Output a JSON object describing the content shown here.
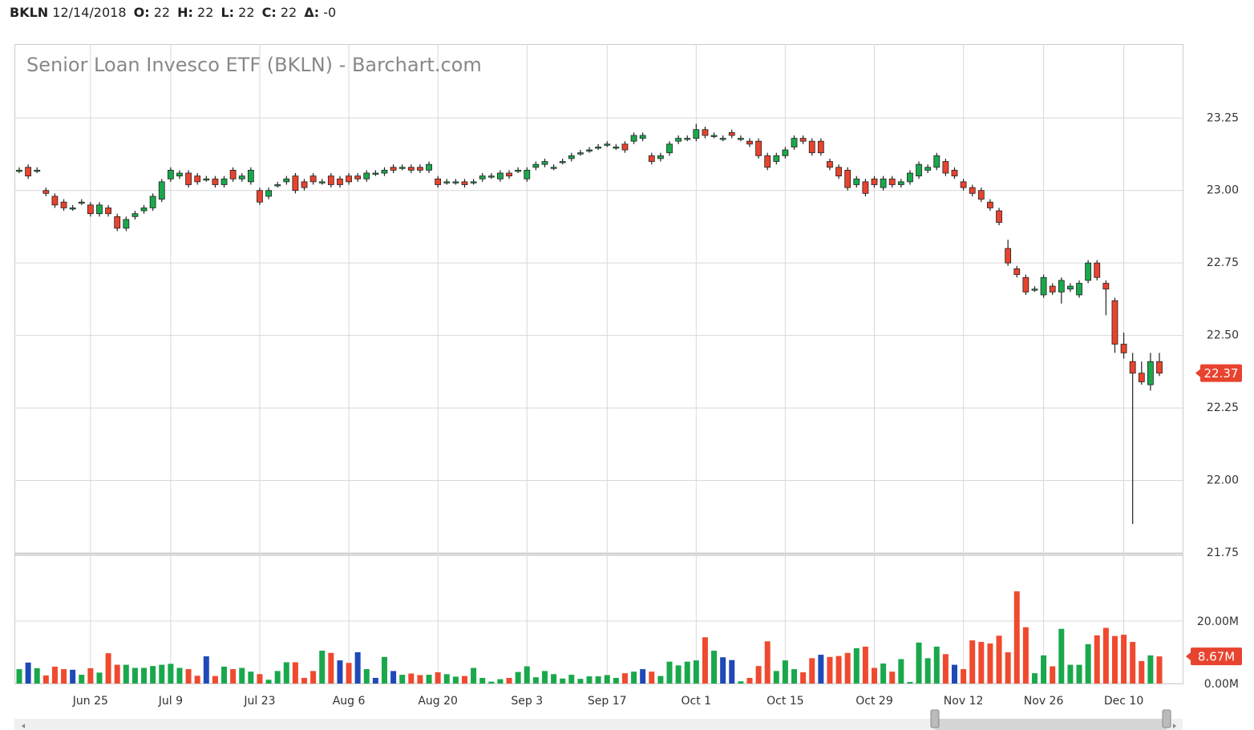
{
  "header": {
    "symbol": "BKLN",
    "date": "12/14/2018",
    "fields": [
      {
        "label": "O:",
        "value": "22"
      },
      {
        "label": "H:",
        "value": "22"
      },
      {
        "label": "L:",
        "value": "22"
      },
      {
        "label": "C:",
        "value": "22"
      },
      {
        "label": "Δ:",
        "value": "-0"
      }
    ]
  },
  "chart_data": {
    "type": "candlestick",
    "title": "Senior Loan Invesco ETF (BKLN) - Barchart.com",
    "categories": [
      null,
      null,
      null,
      null,
      null,
      null,
      null,
      null,
      "Jun 25",
      null,
      null,
      null,
      null,
      null,
      null,
      null,
      null,
      "Jul 9",
      null,
      null,
      null,
      null,
      null,
      null,
      null,
      null,
      null,
      "Jul 23",
      null,
      null,
      null,
      null,
      null,
      null,
      null,
      null,
      null,
      "Aug 6",
      null,
      null,
      null,
      null,
      null,
      null,
      null,
      null,
      null,
      "Aug 20",
      null,
      null,
      null,
      null,
      null,
      null,
      null,
      null,
      null,
      "Sep 3",
      null,
      null,
      null,
      null,
      null,
      null,
      null,
      null,
      "Sep 17",
      null,
      null,
      null,
      null,
      null,
      null,
      null,
      null,
      null,
      "Oct 1",
      null,
      null,
      null,
      null,
      null,
      null,
      null,
      null,
      null,
      "Oct 15",
      null,
      null,
      null,
      null,
      null,
      null,
      null,
      null,
      null,
      "Oct 29",
      null,
      null,
      null,
      null,
      null,
      null,
      null,
      null,
      null,
      "Nov 12",
      null,
      null,
      null,
      null,
      null,
      null,
      null,
      null,
      "Nov 26",
      null,
      null,
      null,
      null,
      null,
      null,
      null,
      null,
      "Dec 10",
      null,
      null,
      null,
      null
    ],
    "open": [
      23.07,
      23.08,
      23.07,
      23.0,
      22.98,
      22.96,
      22.94,
      22.96,
      22.95,
      22.92,
      22.94,
      22.91,
      22.87,
      22.91,
      22.93,
      22.94,
      22.97,
      23.04,
      23.05,
      23.06,
      23.05,
      23.04,
      23.04,
      23.02,
      23.07,
      23.04,
      23.03,
      23.0,
      22.98,
      23.02,
      23.03,
      23.05,
      23.03,
      23.05,
      23.03,
      23.05,
      23.04,
      23.05,
      23.05,
      23.04,
      23.06,
      23.06,
      23.08,
      23.08,
      23.08,
      23.08,
      23.07,
      23.04,
      23.03,
      23.03,
      23.03,
      23.03,
      23.04,
      23.05,
      23.04,
      23.06,
      23.07,
      23.04,
      23.08,
      23.09,
      23.08,
      23.1,
      23.11,
      23.13,
      23.14,
      23.15,
      23.16,
      23.15,
      23.16,
      23.17,
      23.18,
      23.12,
      23.11,
      23.13,
      23.17,
      23.18,
      23.18,
      23.21,
      23.19,
      23.18,
      23.2,
      23.18,
      23.17,
      23.17,
      23.12,
      23.1,
      23.12,
      23.15,
      23.18,
      23.17,
      23.17,
      23.1,
      23.08,
      23.07,
      23.02,
      23.03,
      23.04,
      23.01,
      23.04,
      23.02,
      23.03,
      23.05,
      23.07,
      23.08,
      23.1,
      23.07,
      23.03,
      23.01,
      23.0,
      22.96,
      22.93,
      22.8,
      22.73,
      22.7,
      22.66,
      22.64,
      22.67,
      22.65,
      22.66,
      22.64,
      22.69,
      22.75,
      22.68,
      22.62,
      22.47,
      22.41,
      22.37,
      22.33,
      22.41
    ],
    "high": [
      23.08,
      23.09,
      23.08,
      23.01,
      22.99,
      22.97,
      22.95,
      22.97,
      22.96,
      22.96,
      22.95,
      22.92,
      22.91,
      22.93,
      22.95,
      22.99,
      23.04,
      23.08,
      23.07,
      23.07,
      23.06,
      23.05,
      23.05,
      23.05,
      23.08,
      23.06,
      23.08,
      23.01,
      23.01,
      23.03,
      23.05,
      23.06,
      23.04,
      23.06,
      23.04,
      23.06,
      23.05,
      23.06,
      23.06,
      23.07,
      23.07,
      23.08,
      23.09,
      23.09,
      23.09,
      23.09,
      23.1,
      23.05,
      23.04,
      23.04,
      23.04,
      23.04,
      23.06,
      23.06,
      23.07,
      23.07,
      23.08,
      23.08,
      23.1,
      23.11,
      23.09,
      23.11,
      23.13,
      23.14,
      23.15,
      23.16,
      23.17,
      23.16,
      23.17,
      23.2,
      23.2,
      23.13,
      23.13,
      23.17,
      23.19,
      23.19,
      23.23,
      23.22,
      23.2,
      23.19,
      23.21,
      23.19,
      23.18,
      23.18,
      23.13,
      23.13,
      23.15,
      23.19,
      23.19,
      23.18,
      23.18,
      23.11,
      23.09,
      23.08,
      23.05,
      23.04,
      23.05,
      23.05,
      23.05,
      23.04,
      23.07,
      23.1,
      23.09,
      23.13,
      23.11,
      23.08,
      23.04,
      23.02,
      23.01,
      22.97,
      22.94,
      22.83,
      22.74,
      22.71,
      22.67,
      22.71,
      22.68,
      22.7,
      22.68,
      22.69,
      22.76,
      22.76,
      22.69,
      22.63,
      22.51,
      22.44,
      22.41,
      22.44,
      22.44
    ],
    "low": [
      23.06,
      23.04,
      23.06,
      22.98,
      22.94,
      22.93,
      22.93,
      22.95,
      22.91,
      22.91,
      22.91,
      22.86,
      22.86,
      22.9,
      22.92,
      22.93,
      22.96,
      23.03,
      23.04,
      23.01,
      23.02,
      23.03,
      23.01,
      23.01,
      23.03,
      23.03,
      23.02,
      22.95,
      22.97,
      23.01,
      23.02,
      22.99,
      23.0,
      23.02,
      23.02,
      23.01,
      23.01,
      23.02,
      23.03,
      23.03,
      23.05,
      23.05,
      23.06,
      23.07,
      23.06,
      23.06,
      23.06,
      23.01,
      23.02,
      23.02,
      23.01,
      23.02,
      23.03,
      23.04,
      23.03,
      23.04,
      23.06,
      23.03,
      23.07,
      23.08,
      23.07,
      23.09,
      23.1,
      23.12,
      23.13,
      23.14,
      23.15,
      23.14,
      23.13,
      23.16,
      23.17,
      23.09,
      23.1,
      23.12,
      23.16,
      23.17,
      23.17,
      23.18,
      23.18,
      23.17,
      23.18,
      23.17,
      23.15,
      23.11,
      23.07,
      23.09,
      23.11,
      23.14,
      23.16,
      23.12,
      23.12,
      23.07,
      23.04,
      23.0,
      23.01,
      22.98,
      23.01,
      23.0,
      23.01,
      23.01,
      23.02,
      23.04,
      23.06,
      23.07,
      23.05,
      23.04,
      23.0,
      22.98,
      22.96,
      22.93,
      22.88,
      22.74,
      22.7,
      22.64,
      22.65,
      22.63,
      22.64,
      22.61,
      22.65,
      22.63,
      22.68,
      22.69,
      22.57,
      22.44,
      22.42,
      21.85,
      22.33,
      22.31,
      22.36
    ],
    "close": [
      23.07,
      23.05,
      23.07,
      22.99,
      22.95,
      22.94,
      22.94,
      22.96,
      22.92,
      22.95,
      22.92,
      22.87,
      22.9,
      22.92,
      22.94,
      22.98,
      23.03,
      23.07,
      23.06,
      23.02,
      23.03,
      23.04,
      23.02,
      23.04,
      23.04,
      23.05,
      23.07,
      22.96,
      23.0,
      23.02,
      23.04,
      23.0,
      23.01,
      23.03,
      23.03,
      23.02,
      23.02,
      23.03,
      23.04,
      23.06,
      23.06,
      23.07,
      23.07,
      23.08,
      23.07,
      23.07,
      23.09,
      23.02,
      23.03,
      23.03,
      23.02,
      23.03,
      23.05,
      23.05,
      23.06,
      23.05,
      23.07,
      23.07,
      23.09,
      23.1,
      23.08,
      23.1,
      23.12,
      23.13,
      23.14,
      23.15,
      23.16,
      23.15,
      23.14,
      23.19,
      23.19,
      23.1,
      23.12,
      23.16,
      23.18,
      23.18,
      23.21,
      23.19,
      23.19,
      23.18,
      23.19,
      23.18,
      23.16,
      23.12,
      23.08,
      23.12,
      23.14,
      23.18,
      23.17,
      23.13,
      23.13,
      23.08,
      23.05,
      23.01,
      23.04,
      22.99,
      23.02,
      23.04,
      23.02,
      23.03,
      23.06,
      23.09,
      23.08,
      23.12,
      23.06,
      23.05,
      23.01,
      22.99,
      22.97,
      22.94,
      22.89,
      22.75,
      22.71,
      22.65,
      22.66,
      22.7,
      22.65,
      22.69,
      22.67,
      22.68,
      22.75,
      22.7,
      22.66,
      22.47,
      22.44,
      22.37,
      22.34,
      22.41,
      22.37
    ],
    "volume": [
      4.6,
      6.7,
      4.9,
      2.6,
      5.4,
      4.6,
      4.4,
      2.8,
      4.9,
      3.5,
      9.7,
      6.0,
      6.0,
      5.0,
      5.0,
      5.6,
      6.0,
      6.3,
      5.0,
      4.6,
      2.5,
      8.7,
      2.4,
      5.4,
      4.6,
      5.0,
      3.8,
      3.0,
      1.2,
      4.0,
      6.8,
      6.8,
      1.8,
      4.0,
      10.5,
      9.8,
      7.4,
      6.6,
      10.0,
      4.6,
      1.8,
      8.5,
      4.0,
      2.8,
      3.2,
      2.7,
      2.8,
      3.6,
      3.0,
      2.2,
      2.4,
      5.0,
      1.8,
      0.6,
      1.4,
      1.8,
      3.7,
      5.5,
      2.0,
      4.0,
      3.0,
      1.6,
      2.8,
      1.5,
      2.3,
      2.3,
      2.7,
      1.8,
      3.3,
      3.8,
      4.6,
      3.8,
      2.4,
      7.0,
      5.8,
      7.0,
      7.4,
      14.8,
      10.5,
      8.4,
      7.5,
      0.7,
      1.8,
      5.6,
      13.5,
      4.0,
      7.4,
      4.6,
      3.6,
      8.1,
      9.2,
      8.5,
      8.8,
      9.8,
      11.3,
      11.8,
      5.0,
      6.4,
      3.8,
      7.8,
      0.5,
      13.1,
      8.1,
      11.8,
      9.4,
      6.0,
      4.6,
      13.8,
      13.3,
      12.8,
      15.3,
      10.0,
      29.5,
      18.0,
      3.3,
      9.0,
      5.5,
      17.5,
      6.0,
      6.0,
      12.6,
      15.4,
      17.8,
      15.2,
      15.6,
      13.3,
      7.2,
      9.0,
      8.67
    ],
    "volume_colors": [
      "#1aa84c",
      "#1f49b8",
      "#1aa84c",
      "#ef4a2f",
      "#ef4a2f",
      "#ef4a2f",
      "#1f49b8",
      "#1aa84c",
      "#ef4a2f",
      "#1aa84c",
      "#ef4a2f",
      "#ef4a2f",
      "#1aa84c",
      "#1aa84c",
      "#1aa84c",
      "#1aa84c",
      "#1aa84c",
      "#1aa84c",
      "#1aa84c",
      "#ef4a2f",
      "#ef4a2f",
      "#1f49b8",
      "#ef4a2f",
      "#1aa84c",
      "#ef4a2f",
      "#1aa84c",
      "#1aa84c",
      "#ef4a2f",
      "#1aa84c",
      "#1aa84c",
      "#1aa84c",
      "#ef4a2f",
      "#ef4a2f",
      "#ef4a2f",
      "#1aa84c",
      "#ef4a2f",
      "#1f49b8",
      "#ef4a2f",
      "#1f49b8",
      "#1aa84c",
      "#1f49b8",
      "#1aa84c",
      "#1f49b8",
      "#1aa84c",
      "#ef4a2f",
      "#ef4a2f",
      "#1aa84c",
      "#ef4a2f",
      "#1aa84c",
      "#1aa84c",
      "#ef4a2f",
      "#1aa84c",
      "#1aa84c",
      "#1aa84c",
      "#1aa84c",
      "#ef4a2f",
      "#1aa84c",
      "#1aa84c",
      "#1aa84c",
      "#1aa84c",
      "#1aa84c",
      "#1aa84c",
      "#1aa84c",
      "#1aa84c",
      "#1aa84c",
      "#1aa84c",
      "#1aa84c",
      "#1aa84c",
      "#ef4a2f",
      "#1aa84c",
      "#1f49b8",
      "#ef4a2f",
      "#1aa84c",
      "#1aa84c",
      "#1aa84c",
      "#1aa84c",
      "#1aa84c",
      "#ef4a2f",
      "#1aa84c",
      "#1f49b8",
      "#1f49b8",
      "#1aa84c",
      "#ef4a2f",
      "#ef4a2f",
      "#ef4a2f",
      "#1aa84c",
      "#1aa84c",
      "#1aa84c",
      "#ef4a2f",
      "#ef4a2f",
      "#1f49b8",
      "#ef4a2f",
      "#ef4a2f",
      "#ef4a2f",
      "#1aa84c",
      "#ef4a2f",
      "#ef4a2f",
      "#1aa84c",
      "#ef4a2f",
      "#1aa84c",
      "#1aa84c",
      "#1aa84c",
      "#1aa84c",
      "#1aa84c",
      "#ef4a2f",
      "#1f49b8",
      "#ef4a2f",
      "#ef4a2f",
      "#ef4a2f",
      "#ef4a2f",
      "#ef4a2f",
      "#ef4a2f",
      "#ef4a2f",
      "#ef4a2f",
      "#1aa84c",
      "#1aa84c",
      "#ef4a2f",
      "#1aa84c",
      "#1aa84c",
      "#1aa84c",
      "#1aa84c",
      "#ef4a2f",
      "#ef4a2f",
      "#ef4a2f",
      "#ef4a2f",
      "#ef4a2f",
      "#ef4a2f",
      "#1aa84c",
      "#ef4a2f"
    ],
    "volume_last_label": "8.67M",
    "up_color": "#1aa84c",
    "down_color": "#e8432e",
    "last_label_color": "#e8432e",
    "ylim": [
      21.75,
      23.505
    ],
    "yticks": [
      {
        "value": 21.75,
        "label": "21.75"
      },
      {
        "value": 22,
        "label": "22.00"
      },
      22.25,
      {
        "value": 22.5,
        "label": "22.50"
      },
      22.75,
      {
        "value": 23,
        "label": "23.00"
      },
      23.25
    ],
    "volume_ylim": [
      0,
      41
    ],
    "volume_yticks": [
      {
        "value": 0,
        "label": "0.00M"
      },
      {
        "value": 20,
        "label": "20.00M"
      }
    ],
    "grid": true
  }
}
